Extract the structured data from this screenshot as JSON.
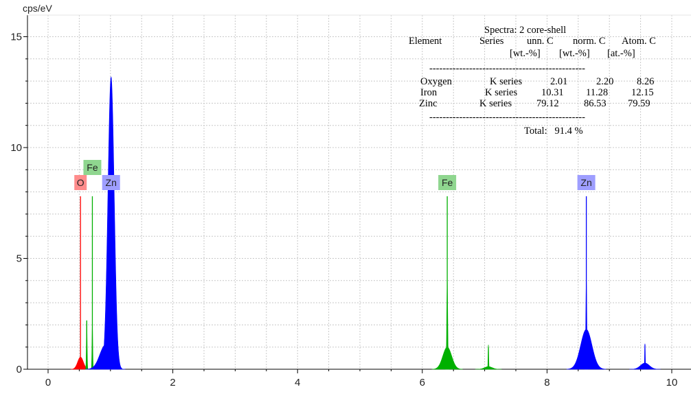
{
  "chart_data": {
    "type": "line",
    "ylabel": "cps/eV",
    "xlim": [
      -0.45,
      10.15
    ],
    "ylim": [
      0,
      15.5
    ],
    "x_ticks": [
      0,
      2,
      4,
      6,
      8,
      10
    ],
    "y_ticks": [
      0,
      5,
      10,
      15
    ],
    "x_tick_labels": [
      "0",
      "2",
      "4",
      "6",
      "8",
      "10"
    ],
    "y_tick_labels": [
      "0",
      "5",
      "10",
      "15"
    ],
    "grid": true,
    "series": [
      {
        "element": "O",
        "color": "#ff0000",
        "lines": [
          {
            "x": 0.52,
            "height": 7.8
          }
        ],
        "peaks": [
          {
            "center": 0.52,
            "height": 0.55,
            "width": 0.045
          }
        ]
      },
      {
        "element": "Fe",
        "color": "#00b000",
        "lines": [
          {
            "x": 0.62,
            "height": 2.2
          },
          {
            "x": 0.71,
            "height": 7.8
          },
          {
            "x": 6.4,
            "height": 7.8
          },
          {
            "x": 7.06,
            "height": 1.0
          }
        ],
        "peaks": [
          {
            "center": 0.62,
            "height": 2.2,
            "width": 0.006
          },
          {
            "center": 0.71,
            "height": 2.0,
            "width": 0.006
          },
          {
            "center": 6.4,
            "height": 1.0,
            "width": 0.07
          },
          {
            "center": 6.4,
            "height": 4.0,
            "width": 0.008
          },
          {
            "center": 7.06,
            "height": 0.12,
            "width": 0.06
          },
          {
            "center": 7.06,
            "height": 1.1,
            "width": 0.005
          }
        ]
      },
      {
        "element": "Zn",
        "color": "#0000ff",
        "lines": [
          {
            "x": 1.01,
            "height": 7.8
          },
          {
            "x": 8.63,
            "height": 7.8
          },
          {
            "x": 9.57,
            "height": 1.1
          }
        ],
        "peaks": [
          {
            "center": 1.01,
            "height": 13.2,
            "width": 0.05
          },
          {
            "center": 1.03,
            "height": 1.0,
            "width": 0.02
          },
          {
            "center": 0.92,
            "height": 1.1,
            "width": 0.09
          },
          {
            "center": 8.63,
            "height": 1.8,
            "width": 0.09
          },
          {
            "center": 8.63,
            "height": 4.0,
            "width": 0.008
          },
          {
            "center": 9.57,
            "height": 0.28,
            "width": 0.07
          },
          {
            "center": 9.57,
            "height": 1.15,
            "width": 0.005
          }
        ]
      }
    ],
    "labels": [
      {
        "text": "O",
        "x": 0.52,
        "row": "lower",
        "color": "#ff8c8c"
      },
      {
        "text": "Fe",
        "x": 0.71,
        "row": "upper",
        "color": "#8fd68f"
      },
      {
        "text": "Zn",
        "x": 1.01,
        "row": "lower",
        "color": "#9e9eff"
      },
      {
        "text": "Fe",
        "x": 6.4,
        "row": "lower",
        "color": "#8fd68f"
      },
      {
        "text": "Zn",
        "x": 8.63,
        "row": "lower",
        "color": "#9e9eff"
      }
    ],
    "results_table": {
      "title": "Spectra: 2 core-shell",
      "header_line1": [
        "Element",
        "Series",
        "unn. C",
        "norm. C",
        "Atom. C"
      ],
      "header_line2": [
        "[wt.-%]",
        "[wt.-%]",
        "[at.-%]"
      ],
      "separator": "-----------------------------------------------",
      "rows": [
        [
          "Oxygen",
          "K series",
          "2.01",
          "2.20",
          "8.26"
        ],
        [
          "Iron",
          "K series",
          "10.31",
          "11.28",
          "12.15"
        ],
        [
          "Zinc",
          "K series",
          "79.12",
          "86.53",
          "79.59"
        ]
      ],
      "total": "Total:   91.4 %"
    }
  }
}
